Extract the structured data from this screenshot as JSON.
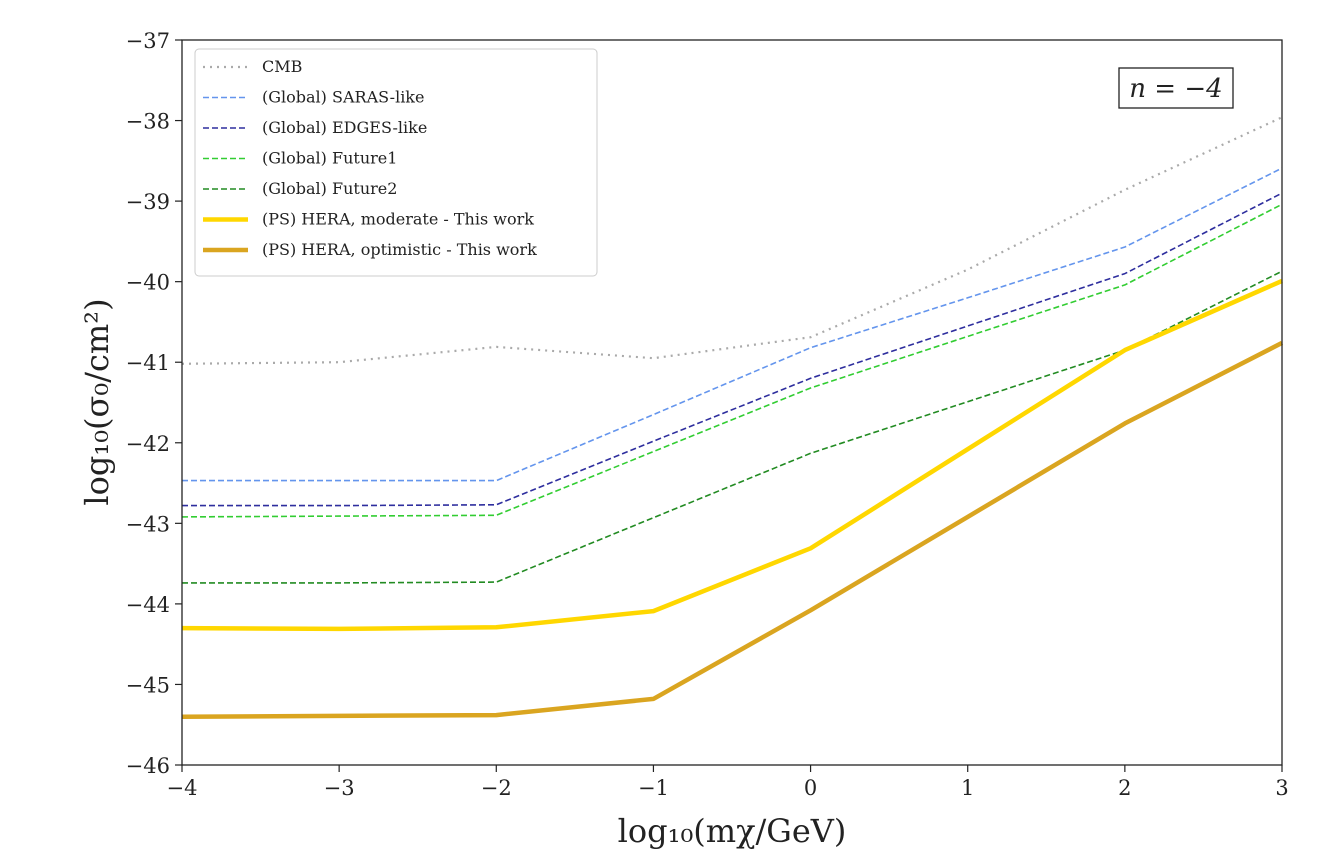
{
  "chart_data": {
    "type": "line",
    "title": "",
    "xlabel": "log₁₀(mχ/GeV)",
    "ylabel": "log₁₀(σ₀/cm²)",
    "xlim": [
      -4,
      3
    ],
    "ylim": [
      -46,
      -37
    ],
    "xticks": [
      -4,
      -3,
      -2,
      -1,
      0,
      1,
      2,
      3
    ],
    "yticks": [
      -46,
      -45,
      -44,
      -43,
      -42,
      -41,
      -40,
      -39,
      -38,
      -37
    ],
    "xtick_labels": [
      "−4",
      "−3",
      "−2",
      "−1",
      "0",
      "1",
      "2",
      "3"
    ],
    "ytick_labels": [
      "−46",
      "−45",
      "−44",
      "−43",
      "−42",
      "−41",
      "−40",
      "−39",
      "−38",
      "−37"
    ],
    "grid": false,
    "legend_placement": "top-left",
    "annotation": "n = −4",
    "x": [
      -4,
      -3,
      -2,
      -1,
      0,
      1,
      2,
      3
    ],
    "series": [
      {
        "name": "CMB",
        "color": "#aaaaaa",
        "style": "dotted",
        "values": [
          -41.02,
          -41.0,
          -40.81,
          -40.95,
          -40.69,
          -39.85,
          -38.86,
          -37.96
        ]
      },
      {
        "name": "(Global) SARAS-like",
        "color": "#6495ed",
        "style": "dashed",
        "values": [
          -42.47,
          -42.47,
          -42.47,
          -41.65,
          -40.82,
          -40.2,
          -39.57,
          -38.59
        ]
      },
      {
        "name": "(Global) EDGES-like",
        "color": "#2e2e9e",
        "style": "dashed",
        "values": [
          -42.78,
          -42.78,
          -42.77,
          -41.98,
          -41.2,
          -40.55,
          -39.9,
          -38.9
        ]
      },
      {
        "name": "(Global) Future1",
        "color": "#32cd32",
        "style": "dashed",
        "values": [
          -42.92,
          -42.91,
          -42.9,
          -42.11,
          -41.32,
          -40.68,
          -40.04,
          -39.04
        ]
      },
      {
        "name": "(Global) Future2",
        "color": "#228b22",
        "style": "dashed",
        "values": [
          -43.74,
          -43.74,
          -43.73,
          -42.93,
          -42.13,
          -41.49,
          -40.85,
          -39.87
        ]
      },
      {
        "name": "(PS) HERA, moderate - This work",
        "color": "#ffd700",
        "style": "solid-thick",
        "values": [
          -44.3,
          -44.31,
          -44.29,
          -44.09,
          -43.31,
          -42.08,
          -40.85,
          -39.99
        ]
      },
      {
        "name": "(PS) HERA, optimistic - This work",
        "color": "#daa520",
        "style": "solid-thick",
        "values": [
          -45.4,
          -45.39,
          -45.38,
          -45.18,
          -44.08,
          -42.92,
          -41.76,
          -40.76
        ]
      }
    ]
  }
}
